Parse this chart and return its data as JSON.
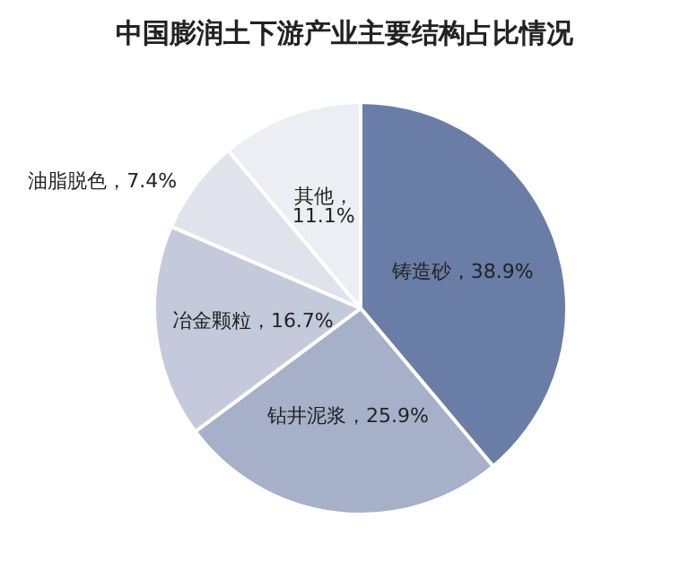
{
  "chart_data": {
    "type": "pie",
    "title": "中国膨润土下游产业主要结构占比情况",
    "categories": [
      "铸造砂",
      "钻井泥浆",
      "冶金颗粒",
      "油脂脱色",
      "其他"
    ],
    "values": [
      38.9,
      25.9,
      16.7,
      7.4,
      11.1
    ],
    "colors": [
      "#6a7da6",
      "#a6b0c9",
      "#c4cadb",
      "#e0e3ec",
      "#eceef4"
    ],
    "value_labels": [
      "，38.9%",
      "，25.9%",
      "，16.7%",
      "，7.4%",
      "，11.1%"
    ],
    "legend": false
  }
}
